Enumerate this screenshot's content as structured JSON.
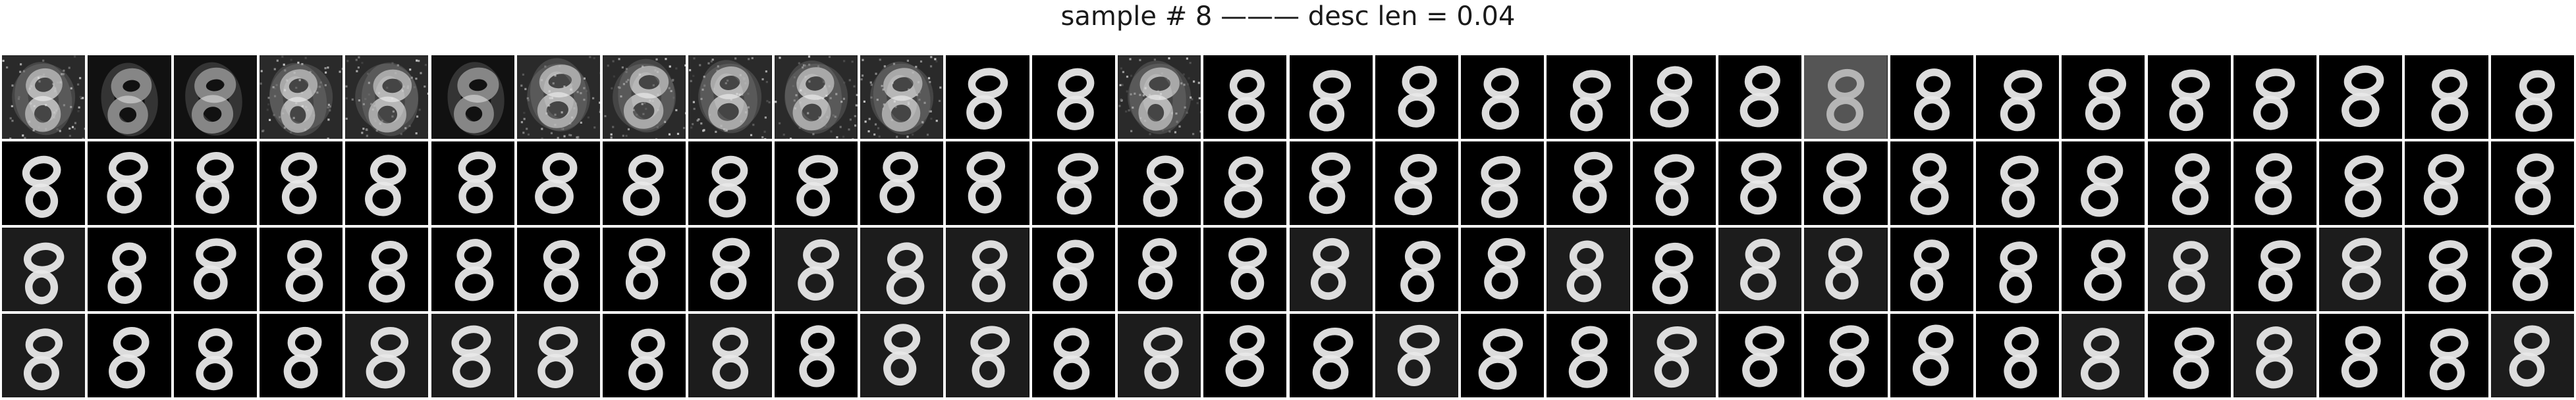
{
  "figure": {
    "title": "sample # 8 ——— desc len = 0.04"
  },
  "grid": {
    "rows": 4,
    "cols": 30,
    "tile_content": "handwritten digit 8 reconstruction, grayscale",
    "row_styles": [
      [
        "noisy",
        "blurry",
        "blurry",
        "noisy",
        "noisy",
        "blurry",
        "noisy",
        "noisy",
        "noisy",
        "noisy",
        "noisy",
        "clean",
        "clean",
        "noisy",
        "clean",
        "clean",
        "clean",
        "clean",
        "clean",
        "clean",
        "clean",
        "gray",
        "clean",
        "clean",
        "clean",
        "clean",
        "clean",
        "clean",
        "clean",
        "clean"
      ],
      [
        "clean",
        "clean",
        "clean",
        "clean",
        "clean",
        "clean",
        "clean",
        "clean",
        "clean",
        "clean",
        "clean",
        "clean",
        "clean",
        "clean",
        "clean",
        "clean",
        "clean",
        "clean",
        "clean",
        "clean",
        "clean",
        "clean",
        "clean",
        "clean",
        "clean",
        "clean",
        "clean",
        "clean",
        "clean",
        "clean"
      ],
      [
        "clean",
        "clean",
        "clean",
        "clean",
        "clean",
        "clean",
        "clean",
        "clean",
        "clean",
        "clean",
        "clean",
        "clean",
        "clean",
        "clean",
        "clean",
        "clean",
        "clean",
        "clean",
        "clean",
        "clean",
        "clean",
        "clean",
        "clean",
        "clean",
        "clean",
        "clean",
        "clean",
        "clean",
        "clean",
        "clean"
      ],
      [
        "clean",
        "clean",
        "clean",
        "clean",
        "clean",
        "clean",
        "clean",
        "clean",
        "clean",
        "clean",
        "clean",
        "clean",
        "clean",
        "clean",
        "clean",
        "clean",
        "clean",
        "clean",
        "clean",
        "clean",
        "clean",
        "clean",
        "clean",
        "clean",
        "clean",
        "clean",
        "clean",
        "clean",
        "clean",
        "clean"
      ]
    ]
  },
  "colors": {
    "background": "#ffffff",
    "tile_dark": "#000000",
    "stroke_light": "#e8e8e8"
  }
}
